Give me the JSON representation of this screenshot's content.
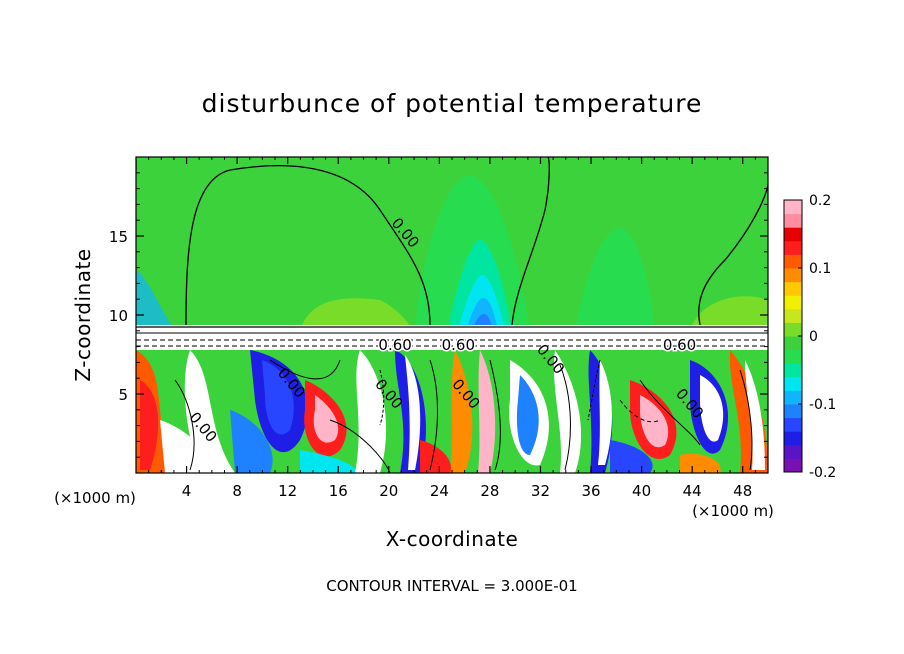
{
  "chart_data": {
    "type": "heatmap",
    "title": "disturbunce of potential temperature",
    "xlabel": "X-coordinate",
    "ylabel": "Z-coordinate",
    "x_unit": "(×1000 m)",
    "x_unit_right": "(×1000 m)",
    "footer": "CONTOUR INTERVAL = 3.000E-01",
    "xlim": [
      0,
      50
    ],
    "ylim": [
      0,
      20
    ],
    "x_ticks": [
      "4",
      "8",
      "12",
      "16",
      "20",
      "24",
      "28",
      "32",
      "36",
      "40",
      "44",
      "48"
    ],
    "x_tick_values": [
      4,
      8,
      12,
      16,
      20,
      24,
      28,
      32,
      36,
      40,
      44,
      48
    ],
    "y_ticks": [
      "5",
      "10",
      "15"
    ],
    "y_tick_values": [
      5,
      10,
      15
    ],
    "colorbar": {
      "range": [
        -0.2,
        0.2
      ],
      "tick_labels": [
        "0.2",
        "0.1",
        "0",
        "-0.1",
        "-0.2"
      ],
      "tick_values": [
        0.2,
        0.1,
        0,
        -0.1,
        -0.2
      ],
      "colors": [
        "#7a0fb4",
        "#5a14c8",
        "#1e1ee6",
        "#2846ff",
        "#1e82ff",
        "#10b4ff",
        "#00e6f0",
        "#00e6a0",
        "#28dc50",
        "#3cd23c",
        "#78dc28",
        "#c8e61e",
        "#f0f000",
        "#ffc800",
        "#ff8c00",
        "#ff5a00",
        "#ff1e1e",
        "#e60000",
        "#ff8ca0",
        "#ffb4c8"
      ]
    },
    "contour_labels": [
      {
        "text": "0.00",
        "x": 21,
        "z": 15
      },
      {
        "text": "0.60",
        "x": 20.5,
        "z": 7.8
      },
      {
        "text": "0.60",
        "x": 25.5,
        "z": 7.8
      },
      {
        "text": "0.60",
        "x": 43,
        "z": 7.8
      },
      {
        "text": "0.00",
        "x": 5,
        "z": 2.7
      },
      {
        "text": "0.00",
        "x": 12,
        "z": 5.5
      },
      {
        "text": "0.00",
        "x": 19.7,
        "z": 4.8
      },
      {
        "text": "0.00",
        "x": 25.8,
        "z": 4.8
      },
      {
        "text": "0.00",
        "x": 32.5,
        "z": 7.0
      },
      {
        "text": "0.00",
        "x": 43.5,
        "z": 4.2
      }
    ],
    "grid": false,
    "legend_position": "right"
  }
}
